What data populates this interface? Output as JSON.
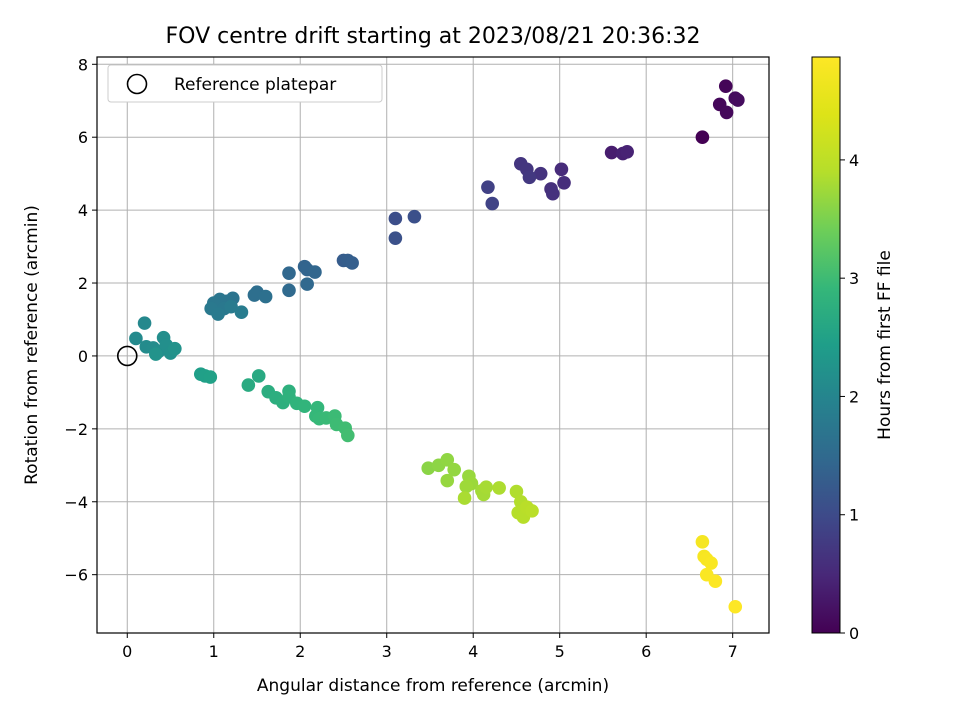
{
  "chart_data": {
    "type": "scatter",
    "title": "FOV centre drift starting at 2023/08/21 20:36:32",
    "xlabel": "Angular distance from reference (arcmin)",
    "ylabel": "Rotation from reference (arcmin)",
    "xlim": [
      -0.35,
      7.42
    ],
    "ylim": [
      -7.6,
      8.2
    ],
    "x_ticks": [
      0,
      1,
      2,
      3,
      4,
      5,
      6,
      7
    ],
    "y_ticks": [
      -6,
      -4,
      -2,
      0,
      2,
      4,
      6,
      8
    ],
    "grid": true,
    "legend": {
      "position": "top-left",
      "entries": [
        "Reference platepar"
      ]
    },
    "reference": {
      "x": 0,
      "y": 0
    },
    "colorbar": {
      "label": "Hours from first FF file",
      "colormap": "viridis",
      "range": [
        0,
        4.87
      ],
      "ticks": [
        0,
        1,
        2,
        3,
        4
      ]
    },
    "points": [
      {
        "x": 6.65,
        "y": 6.0,
        "t": 0.0
      },
      {
        "x": 6.92,
        "y": 7.4,
        "t": 0.05
      },
      {
        "x": 6.85,
        "y": 6.9,
        "t": 0.08
      },
      {
        "x": 6.93,
        "y": 6.68,
        "t": 0.1
      },
      {
        "x": 7.03,
        "y": 7.07,
        "t": 0.12
      },
      {
        "x": 7.06,
        "y": 7.02,
        "t": 0.14
      },
      {
        "x": 5.6,
        "y": 5.58,
        "t": 0.35
      },
      {
        "x": 5.73,
        "y": 5.55,
        "t": 0.4
      },
      {
        "x": 5.78,
        "y": 5.6,
        "t": 0.43
      },
      {
        "x": 5.02,
        "y": 5.12,
        "t": 0.55
      },
      {
        "x": 5.05,
        "y": 4.75,
        "t": 0.58
      },
      {
        "x": 4.9,
        "y": 4.58,
        "t": 0.6
      },
      {
        "x": 4.92,
        "y": 4.45,
        "t": 0.62
      },
      {
        "x": 4.78,
        "y": 5.0,
        "t": 0.65
      },
      {
        "x": 4.55,
        "y": 5.27,
        "t": 0.68
      },
      {
        "x": 4.62,
        "y": 5.12,
        "t": 0.7
      },
      {
        "x": 4.65,
        "y": 4.9,
        "t": 0.72
      },
      {
        "x": 4.17,
        "y": 4.63,
        "t": 0.85
      },
      {
        "x": 4.22,
        "y": 4.18,
        "t": 0.88
      },
      {
        "x": 3.1,
        "y": 3.77,
        "t": 1.05
      },
      {
        "x": 3.32,
        "y": 3.82,
        "t": 1.08
      },
      {
        "x": 3.1,
        "y": 3.23,
        "t": 1.1
      },
      {
        "x": 2.5,
        "y": 2.62,
        "t": 1.28
      },
      {
        "x": 2.55,
        "y": 2.62,
        "t": 1.3
      },
      {
        "x": 2.6,
        "y": 2.55,
        "t": 1.32
      },
      {
        "x": 2.05,
        "y": 2.45,
        "t": 1.4
      },
      {
        "x": 2.08,
        "y": 2.37,
        "t": 1.42
      },
      {
        "x": 2.17,
        "y": 2.3,
        "t": 1.44
      },
      {
        "x": 1.87,
        "y": 2.27,
        "t": 1.46
      },
      {
        "x": 2.08,
        "y": 1.97,
        "t": 1.48
      },
      {
        "x": 1.87,
        "y": 1.8,
        "t": 1.5
      },
      {
        "x": 1.5,
        "y": 1.75,
        "t": 1.58
      },
      {
        "x": 1.47,
        "y": 1.67,
        "t": 1.6
      },
      {
        "x": 1.6,
        "y": 1.63,
        "t": 1.62
      },
      {
        "x": 1.22,
        "y": 1.58,
        "t": 1.68
      },
      {
        "x": 1.15,
        "y": 1.5,
        "t": 1.7
      },
      {
        "x": 1.07,
        "y": 1.55,
        "t": 1.72
      },
      {
        "x": 1.0,
        "y": 1.45,
        "t": 1.74
      },
      {
        "x": 1.12,
        "y": 1.3,
        "t": 1.76
      },
      {
        "x": 0.97,
        "y": 1.3,
        "t": 1.78
      },
      {
        "x": 1.05,
        "y": 1.15,
        "t": 1.8
      },
      {
        "x": 1.2,
        "y": 1.35,
        "t": 1.82
      },
      {
        "x": 1.32,
        "y": 1.2,
        "t": 1.84
      },
      {
        "x": 0.2,
        "y": 0.9,
        "t": 2.05
      },
      {
        "x": 0.1,
        "y": 0.48,
        "t": 2.08
      },
      {
        "x": 0.22,
        "y": 0.25,
        "t": 2.1
      },
      {
        "x": 0.3,
        "y": 0.22,
        "t": 2.12
      },
      {
        "x": 0.36,
        "y": 0.12,
        "t": 2.14
      },
      {
        "x": 0.42,
        "y": 0.5,
        "t": 2.16
      },
      {
        "x": 0.45,
        "y": 0.3,
        "t": 2.18
      },
      {
        "x": 0.5,
        "y": 0.08,
        "t": 2.2
      },
      {
        "x": 0.55,
        "y": 0.2,
        "t": 2.22
      },
      {
        "x": 0.33,
        "y": 0.05,
        "t": 2.24
      },
      {
        "x": 0.85,
        "y": -0.5,
        "t": 2.45
      },
      {
        "x": 0.9,
        "y": -0.55,
        "t": 2.47
      },
      {
        "x": 0.96,
        "y": -0.58,
        "t": 2.49
      },
      {
        "x": 1.52,
        "y": -0.55,
        "t": 2.65
      },
      {
        "x": 1.4,
        "y": -0.8,
        "t": 2.67
      },
      {
        "x": 1.63,
        "y": -0.98,
        "t": 2.72
      },
      {
        "x": 1.72,
        "y": -1.15,
        "t": 2.74
      },
      {
        "x": 1.8,
        "y": -1.28,
        "t": 2.76
      },
      {
        "x": 1.87,
        "y": -0.97,
        "t": 2.78
      },
      {
        "x": 1.87,
        "y": -1.12,
        "t": 2.8
      },
      {
        "x": 1.96,
        "y": -1.3,
        "t": 2.84
      },
      {
        "x": 2.05,
        "y": -1.38,
        "t": 2.86
      },
      {
        "x": 2.2,
        "y": -1.42,
        "t": 2.9
      },
      {
        "x": 2.18,
        "y": -1.65,
        "t": 2.92
      },
      {
        "x": 2.22,
        "y": -1.72,
        "t": 2.94
      },
      {
        "x": 2.3,
        "y": -1.7,
        "t": 2.96
      },
      {
        "x": 2.4,
        "y": -1.65,
        "t": 2.98
      },
      {
        "x": 2.42,
        "y": -1.88,
        "t": 3.0
      },
      {
        "x": 2.52,
        "y": -1.98,
        "t": 3.02
      },
      {
        "x": 2.55,
        "y": -2.18,
        "t": 3.04
      },
      {
        "x": 3.48,
        "y": -3.08,
        "t": 3.6
      },
      {
        "x": 3.6,
        "y": -3.0,
        "t": 3.62
      },
      {
        "x": 3.7,
        "y": -2.85,
        "t": 3.64
      },
      {
        "x": 3.78,
        "y": -3.12,
        "t": 3.66
      },
      {
        "x": 3.7,
        "y": -3.42,
        "t": 3.68
      },
      {
        "x": 3.95,
        "y": -3.3,
        "t": 3.7
      },
      {
        "x": 3.98,
        "y": -3.5,
        "t": 3.72
      },
      {
        "x": 3.92,
        "y": -3.58,
        "t": 3.74
      },
      {
        "x": 4.1,
        "y": -3.7,
        "t": 3.76
      },
      {
        "x": 4.12,
        "y": -3.8,
        "t": 3.78
      },
      {
        "x": 4.15,
        "y": -3.6,
        "t": 3.8
      },
      {
        "x": 3.9,
        "y": -3.9,
        "t": 3.82
      },
      {
        "x": 4.3,
        "y": -3.62,
        "t": 3.84
      },
      {
        "x": 4.5,
        "y": -3.72,
        "t": 3.86
      },
      {
        "x": 4.55,
        "y": -4.0,
        "t": 3.88
      },
      {
        "x": 4.52,
        "y": -4.3,
        "t": 3.9
      },
      {
        "x": 4.58,
        "y": -4.42,
        "t": 3.92
      },
      {
        "x": 4.62,
        "y": -4.15,
        "t": 3.94
      },
      {
        "x": 4.68,
        "y": -4.25,
        "t": 3.96
      },
      {
        "x": 6.65,
        "y": -5.1,
        "t": 4.75
      },
      {
        "x": 6.67,
        "y": -5.5,
        "t": 4.77
      },
      {
        "x": 6.7,
        "y": -5.58,
        "t": 4.79
      },
      {
        "x": 6.75,
        "y": -5.68,
        "t": 4.81
      },
      {
        "x": 6.7,
        "y": -6.0,
        "t": 4.83
      },
      {
        "x": 6.8,
        "y": -6.18,
        "t": 4.85
      },
      {
        "x": 7.03,
        "y": -6.88,
        "t": 4.87
      }
    ]
  }
}
